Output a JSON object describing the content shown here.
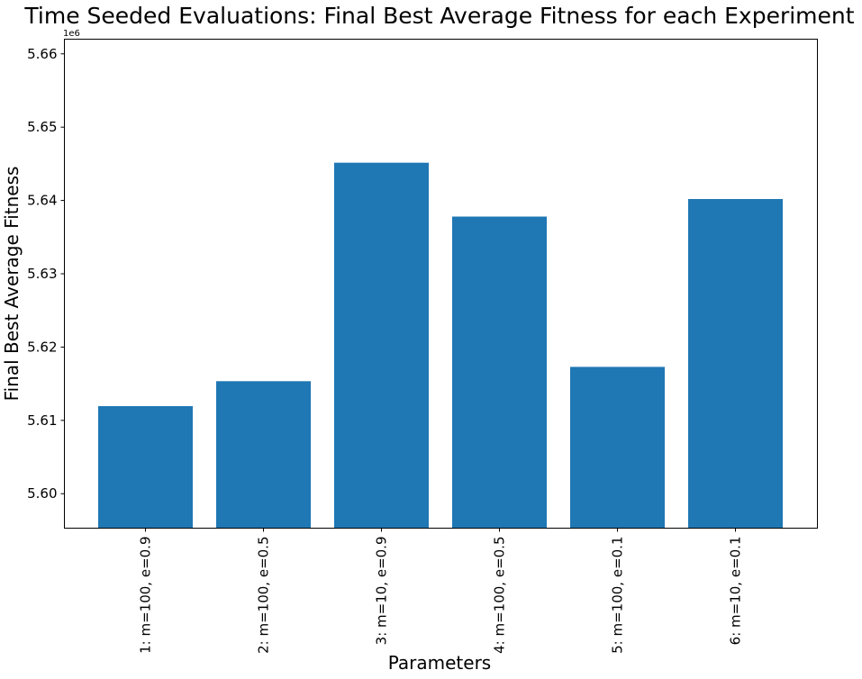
{
  "chart_data": {
    "type": "bar",
    "title": "Time Seeded Evaluations: Final Best Average Fitness for each Experiment",
    "xlabel": "Parameters",
    "ylabel": "Final Best Average Fitness",
    "y_offset_label": "1e6",
    "categories": [
      "1: m=100, e=0.9",
      "2: m=100, e=0.5",
      "3: m=10, e=0.9",
      "4: m=100, e=0.5",
      "5: m=100, e=0.1",
      "6: m=10, e=0.1"
    ],
    "values": [
      5611950,
      5615350,
      5645150,
      5637800,
      5617300,
      5640200
    ],
    "ylim": [
      5595300,
      5662000
    ],
    "yticks": [
      5600000,
      5610000,
      5620000,
      5630000,
      5640000,
      5650000,
      5660000
    ],
    "ytick_labels": [
      "5.60",
      "5.61",
      "5.62",
      "5.63",
      "5.64",
      "5.65",
      "5.66"
    ],
    "grid": false,
    "bar_color": "#1f77b4"
  }
}
